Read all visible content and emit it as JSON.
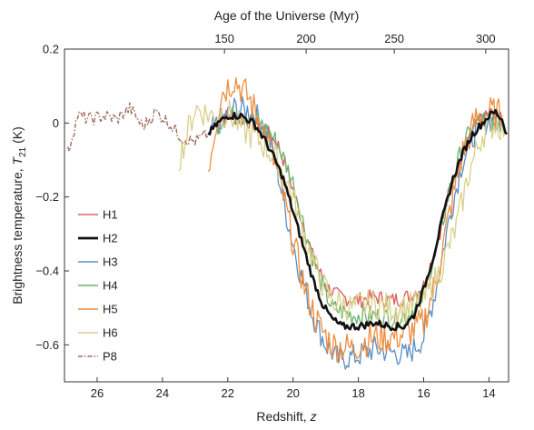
{
  "chart_data": {
    "type": "line",
    "xlabel_bottom": "Redshift, ",
    "xlabel_bottom_var": "z",
    "xlabel_top": "Age of the Universe (Myr)",
    "ylabel_main": "Brightness temperature, ",
    "ylabel_var": "T",
    "ylabel_sub": "21",
    "ylabel_unit": " (K)",
    "x_axis": {
      "range": [
        27.0,
        13.4
      ],
      "reversed": true,
      "ticks": [
        26,
        24,
        22,
        20,
        18,
        16,
        14
      ],
      "tick_labels": [
        "26",
        "24",
        "22",
        "20",
        "18",
        "16",
        "14"
      ]
    },
    "top_axis": {
      "ticks_age": [
        150,
        200,
        250,
        300
      ],
      "tick_labels": [
        "150",
        "200",
        "250",
        "300"
      ],
      "tick_redshifts": [
        22.1,
        19.6,
        16.9,
        14.1
      ]
    },
    "y_axis": {
      "range": [
        -0.7,
        0.2
      ],
      "ticks": [
        0.2,
        0,
        -0.2,
        -0.4,
        -0.6
      ],
      "tick_labels": [
        "0.2",
        "0",
        "−0.2",
        "−0.4",
        "−0.6"
      ]
    },
    "grid": false,
    "legend_position": "lower-left",
    "series": [
      {
        "name": "H1",
        "color": "#e06060",
        "width": 1.4,
        "dash": "",
        "noise": 0.022,
        "points": [
          [
            22.4,
            0.0
          ],
          [
            22.0,
            0.02
          ],
          [
            21.5,
            0.01
          ],
          [
            21.0,
            -0.01
          ],
          [
            20.5,
            -0.05
          ],
          [
            20.2,
            -0.12
          ],
          [
            19.8,
            -0.24
          ],
          [
            19.4,
            -0.36
          ],
          [
            19.0,
            -0.44
          ],
          [
            18.6,
            -0.47
          ],
          [
            18.0,
            -0.48
          ],
          [
            17.5,
            -0.47
          ],
          [
            17.0,
            -0.48
          ],
          [
            16.5,
            -0.47
          ],
          [
            16.0,
            -0.44
          ],
          [
            15.6,
            -0.33
          ],
          [
            15.2,
            -0.18
          ],
          [
            14.8,
            -0.07
          ],
          [
            14.4,
            0.0
          ],
          [
            14.0,
            0.02
          ],
          [
            13.6,
            0.01
          ]
        ]
      },
      {
        "name": "H3",
        "color": "#5b8fc4",
        "width": 1.3,
        "dash": "",
        "noise": 0.035,
        "points": [
          [
            22.5,
            -0.02
          ],
          [
            21.8,
            0.04
          ],
          [
            21.2,
            0.03
          ],
          [
            20.8,
            -0.02
          ],
          [
            20.5,
            -0.12
          ],
          [
            20.2,
            -0.25
          ],
          [
            19.8,
            -0.4
          ],
          [
            19.4,
            -0.52
          ],
          [
            19.0,
            -0.6
          ],
          [
            18.6,
            -0.64
          ],
          [
            18.0,
            -0.63
          ],
          [
            17.5,
            -0.61
          ],
          [
            17.0,
            -0.62
          ],
          [
            16.5,
            -0.63
          ],
          [
            16.0,
            -0.58
          ],
          [
            15.6,
            -0.44
          ],
          [
            15.2,
            -0.25
          ],
          [
            14.8,
            -0.1
          ],
          [
            14.4,
            -0.02
          ],
          [
            14.0,
            0.01
          ],
          [
            13.6,
            0.0
          ]
        ]
      },
      {
        "name": "H4",
        "color": "#6ab36a",
        "width": 1.3,
        "dash": "",
        "noise": 0.028,
        "points": [
          [
            22.4,
            -0.01
          ],
          [
            22.0,
            0.02
          ],
          [
            21.5,
            0.02
          ],
          [
            21.0,
            0.0
          ],
          [
            20.5,
            -0.05
          ],
          [
            20.0,
            -0.16
          ],
          [
            19.6,
            -0.3
          ],
          [
            19.2,
            -0.42
          ],
          [
            18.8,
            -0.5
          ],
          [
            18.2,
            -0.52
          ],
          [
            17.6,
            -0.52
          ],
          [
            17.0,
            -0.53
          ],
          [
            16.5,
            -0.52
          ],
          [
            16.0,
            -0.47
          ],
          [
            15.6,
            -0.34
          ],
          [
            15.2,
            -0.18
          ],
          [
            14.8,
            -0.06
          ],
          [
            14.4,
            0.0
          ],
          [
            14.0,
            0.01
          ],
          [
            13.6,
            0.0
          ]
        ]
      },
      {
        "name": "H5",
        "color": "#ee8c3e",
        "width": 1.3,
        "dash": "",
        "noise": 0.045,
        "points": [
          [
            22.6,
            -0.12
          ],
          [
            22.2,
            0.08
          ],
          [
            21.8,
            0.12
          ],
          [
            21.3,
            0.06
          ],
          [
            20.8,
            -0.04
          ],
          [
            20.4,
            -0.16
          ],
          [
            20.0,
            -0.32
          ],
          [
            19.6,
            -0.46
          ],
          [
            19.2,
            -0.55
          ],
          [
            18.8,
            -0.6
          ],
          [
            18.2,
            -0.61
          ],
          [
            17.6,
            -0.58
          ],
          [
            17.0,
            -0.58
          ],
          [
            16.5,
            -0.57
          ],
          [
            16.0,
            -0.54
          ],
          [
            15.6,
            -0.42
          ],
          [
            15.2,
            -0.24
          ],
          [
            14.8,
            -0.08
          ],
          [
            14.4,
            0.01
          ],
          [
            14.0,
            0.03
          ],
          [
            13.6,
            0.02
          ]
        ]
      },
      {
        "name": "H6",
        "color": "#d9d08a",
        "width": 1.3,
        "dash": "",
        "noise": 0.04,
        "points": [
          [
            23.5,
            -0.1
          ],
          [
            23.0,
            0.04
          ],
          [
            22.5,
            0.02
          ],
          [
            22.0,
            0.03
          ],
          [
            21.5,
            -0.02
          ],
          [
            21.0,
            -0.05
          ],
          [
            20.5,
            -0.1
          ],
          [
            20.0,
            -0.2
          ],
          [
            19.6,
            -0.32
          ],
          [
            19.2,
            -0.42
          ],
          [
            18.8,
            -0.48
          ],
          [
            18.2,
            -0.5
          ],
          [
            17.6,
            -0.49
          ],
          [
            17.0,
            -0.5
          ],
          [
            16.5,
            -0.5
          ],
          [
            16.0,
            -0.48
          ],
          [
            15.5,
            -0.4
          ],
          [
            15.0,
            -0.28
          ],
          [
            14.6,
            -0.13
          ],
          [
            14.2,
            -0.03
          ],
          [
            13.8,
            0.0
          ],
          [
            13.5,
            -0.02
          ]
        ]
      },
      {
        "name": "P8",
        "color": "#9e6b5e",
        "width": 1.4,
        "dash": "5 2 1.5 2",
        "noise": 0.018,
        "points": [
          [
            26.9,
            -0.08
          ],
          [
            26.6,
            0.02
          ],
          [
            26.2,
            0.01
          ],
          [
            25.8,
            0.02
          ],
          [
            25.4,
            0.01
          ],
          [
            25.0,
            0.04
          ],
          [
            24.6,
            -0.01
          ],
          [
            24.2,
            0.03
          ],
          [
            23.8,
            0.0
          ],
          [
            23.4,
            -0.04
          ],
          [
            23.0,
            -0.05
          ],
          [
            22.6,
            -0.03
          ]
        ]
      },
      {
        "name": "H2",
        "color": "#111111",
        "width": 2.6,
        "dash": "",
        "noise": 0.01,
        "points": [
          [
            22.6,
            -0.03
          ],
          [
            22.3,
            0.0
          ],
          [
            22.0,
            0.02
          ],
          [
            21.6,
            0.02
          ],
          [
            21.2,
            0.0
          ],
          [
            20.9,
            -0.04
          ],
          [
            20.6,
            -0.09
          ],
          [
            20.3,
            -0.15
          ],
          [
            20.0,
            -0.24
          ],
          [
            19.7,
            -0.33
          ],
          [
            19.4,
            -0.42
          ],
          [
            19.1,
            -0.49
          ],
          [
            18.8,
            -0.53
          ],
          [
            18.5,
            -0.55
          ],
          [
            18.0,
            -0.55
          ],
          [
            17.5,
            -0.54
          ],
          [
            17.0,
            -0.55
          ],
          [
            16.6,
            -0.55
          ],
          [
            16.3,
            -0.52
          ],
          [
            16.0,
            -0.45
          ],
          [
            15.7,
            -0.36
          ],
          [
            15.4,
            -0.25
          ],
          [
            15.1,
            -0.15
          ],
          [
            14.8,
            -0.08
          ],
          [
            14.5,
            -0.03
          ],
          [
            14.2,
            0.0
          ],
          [
            14.0,
            0.02
          ],
          [
            13.8,
            0.03
          ],
          [
            13.6,
            0.01
          ],
          [
            13.45,
            -0.03
          ]
        ]
      }
    ],
    "legend": [
      {
        "label": "H1",
        "color": "#e06060",
        "width": 1.6,
        "dash": ""
      },
      {
        "label": "H2",
        "color": "#111111",
        "width": 2.8,
        "dash": ""
      },
      {
        "label": "H3",
        "color": "#5b8fc4",
        "width": 1.6,
        "dash": ""
      },
      {
        "label": "H4",
        "color": "#6ab36a",
        "width": 1.6,
        "dash": ""
      },
      {
        "label": "H5",
        "color": "#ee8c3e",
        "width": 1.6,
        "dash": ""
      },
      {
        "label": "H6",
        "color": "#d9d08a",
        "width": 1.6,
        "dash": ""
      },
      {
        "label": "P8",
        "color": "#9e6b5e",
        "width": 1.6,
        "dash": "5 2 1.5 2"
      }
    ]
  }
}
